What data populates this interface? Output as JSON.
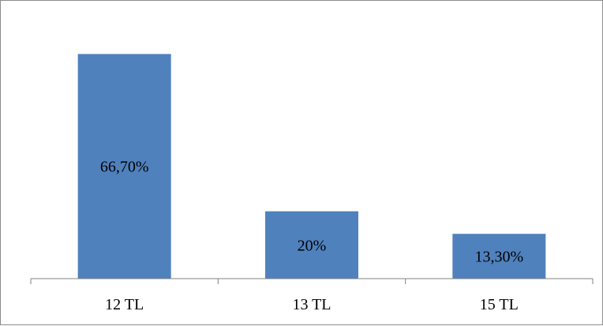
{
  "chart_data": {
    "type": "bar",
    "categories": [
      "12 TL",
      "13 TL",
      "15 TL"
    ],
    "values": [
      66.7,
      20,
      13.3
    ],
    "value_labels": [
      "66,70%",
      "20%",
      "13,30%"
    ],
    "title": "",
    "xlabel": "",
    "ylabel": "",
    "ylim": [
      0,
      75
    ],
    "grid": false,
    "legend": "none",
    "bar_color": "#4f81bd",
    "axis_color": "#808080"
  }
}
